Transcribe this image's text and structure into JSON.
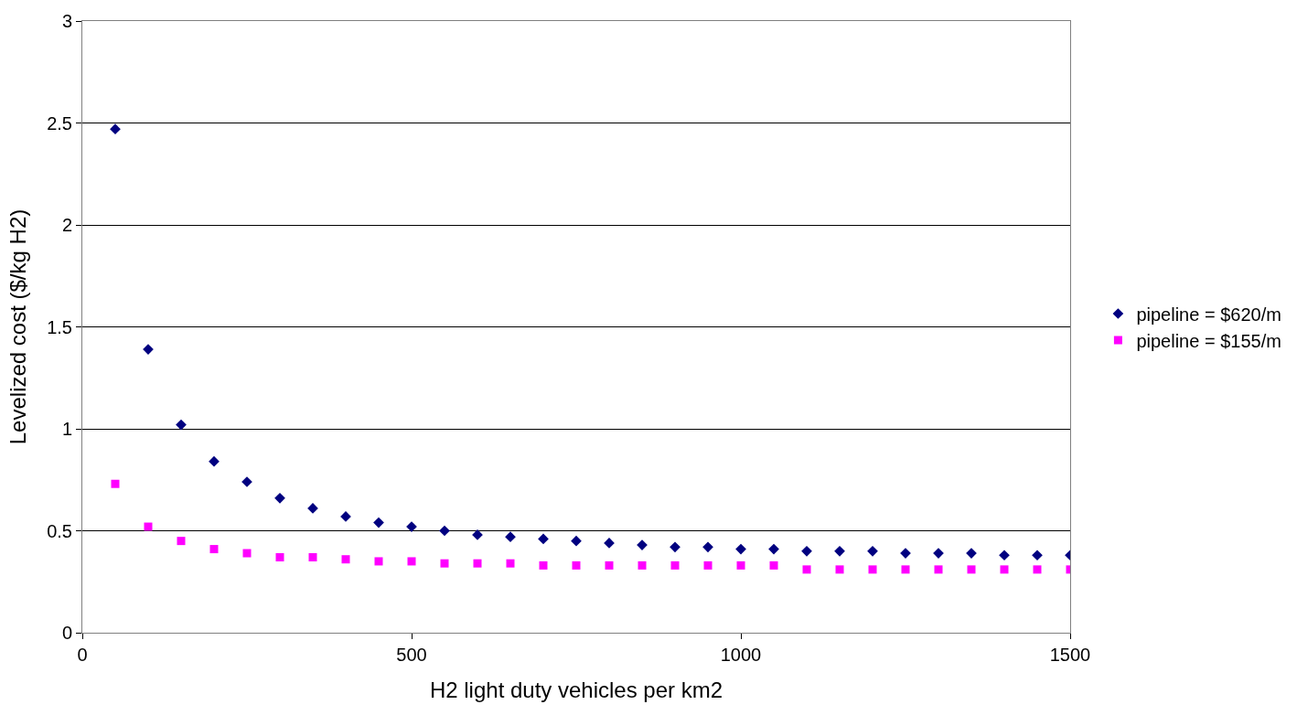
{
  "chart_data": {
    "type": "scatter",
    "xlabel": "H2 light duty vehicles per km2",
    "ylabel": "Levelized cost ($/kg H2)",
    "x": [
      50,
      100,
      150,
      200,
      250,
      300,
      350,
      400,
      450,
      500,
      550,
      600,
      650,
      700,
      750,
      800,
      850,
      900,
      950,
      1000,
      1050,
      1100,
      1150,
      1200,
      1250,
      1300,
      1350,
      1400,
      1450,
      1500
    ],
    "series": [
      {
        "name": "pipeline = $620/m",
        "color": "#000080",
        "marker": "diamond",
        "values": [
          2.47,
          1.39,
          1.02,
          0.84,
          0.74,
          0.66,
          0.61,
          0.57,
          0.54,
          0.52,
          0.5,
          0.48,
          0.47,
          0.46,
          0.45,
          0.44,
          0.43,
          0.42,
          0.42,
          0.41,
          0.41,
          0.4,
          0.4,
          0.4,
          0.39,
          0.39,
          0.39,
          0.38,
          0.38,
          0.38
        ]
      },
      {
        "name": "pipeline = $155/m",
        "color": "#ff00ff",
        "marker": "square",
        "values": [
          0.73,
          0.52,
          0.45,
          0.41,
          0.39,
          0.37,
          0.37,
          0.36,
          0.35,
          0.35,
          0.34,
          0.34,
          0.34,
          0.33,
          0.33,
          0.33,
          0.33,
          0.33,
          0.33,
          0.33,
          0.33,
          0.31,
          0.31,
          0.31,
          0.31,
          0.31,
          0.31,
          0.31,
          0.31,
          0.31
        ]
      }
    ],
    "xlim": [
      0,
      1500
    ],
    "xticks": [
      0,
      500,
      1000,
      1500
    ],
    "ylim": [
      0,
      3
    ],
    "yticks": [
      0,
      0.5,
      1,
      1.5,
      2,
      2.5,
      3
    ],
    "grid": "y",
    "legend": "right"
  }
}
